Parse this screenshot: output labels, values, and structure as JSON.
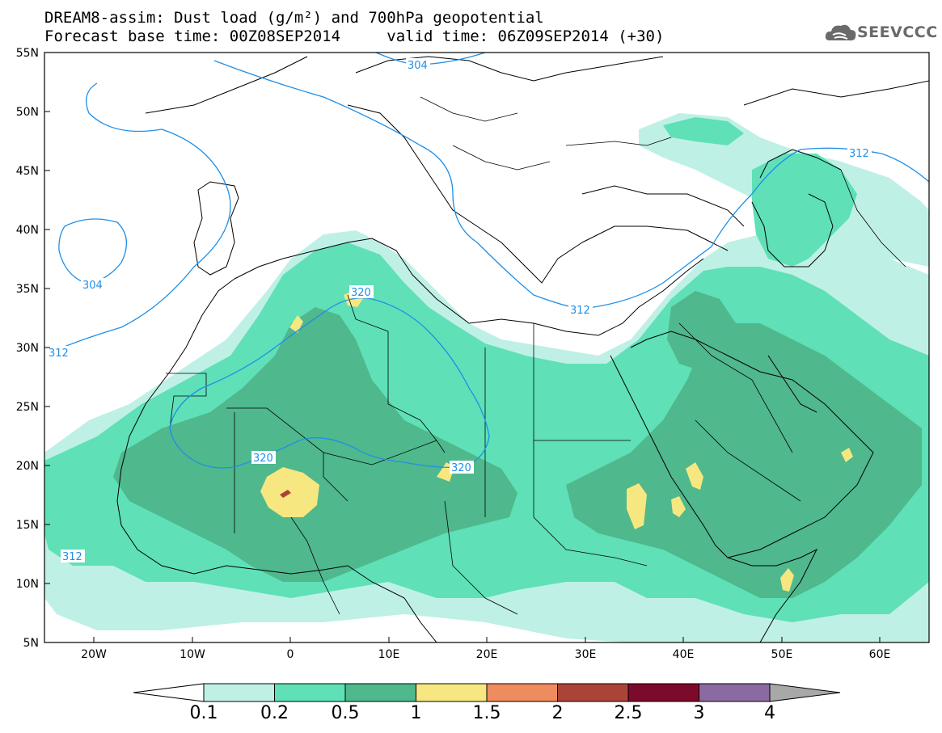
{
  "title_line1": "DREAM8-assim: Dust load (g/m²) and 700hPa geopotential",
  "title_line2_base": "Forecast base time: 00Z08SEP2014",
  "title_line2_valid": "valid time: 06Z09SEP2014 (+30)",
  "logo_text": "SEEVCCC",
  "lat_labels": [
    "55N",
    "50N",
    "45N",
    "40N",
    "35N",
    "30N",
    "25N",
    "20N",
    "15N",
    "10N",
    "5N"
  ],
  "lon_labels": [
    "20W",
    "10W",
    "0",
    "10E",
    "20E",
    "30E",
    "40E",
    "50E",
    "60E"
  ],
  "contour_labels": {
    "c304_north": "304",
    "c304_west": "304",
    "c312_west": "312",
    "c312_med": "312",
    "c312_east": "312",
    "c312_sw": "312",
    "c320_a": "320",
    "c320_b": "320",
    "c320_c": "320"
  },
  "colorbar": {
    "labels": [
      "0.1",
      "0.2",
      "0.5",
      "1",
      "1.5",
      "2",
      "2.5",
      "3",
      "4"
    ],
    "colors": [
      "#bff0e6",
      "#5fe0b7",
      "#4fb88d",
      "#f6e780",
      "#ee8c5f",
      "#ab4438",
      "#7c0a2a",
      "#8a6aa0"
    ],
    "under_color": "#ffffff",
    "over_color": "#a8a8a8"
  },
  "colors": {
    "contour": "#1f8fe8",
    "coast": "#000000",
    "level_01": "#bff0e6",
    "level_02": "#5fe0b7",
    "level_05": "#4fb88d",
    "level_1": "#f6e780",
    "level_15": "#ee8c5f",
    "level_2": "#ab4438"
  }
}
